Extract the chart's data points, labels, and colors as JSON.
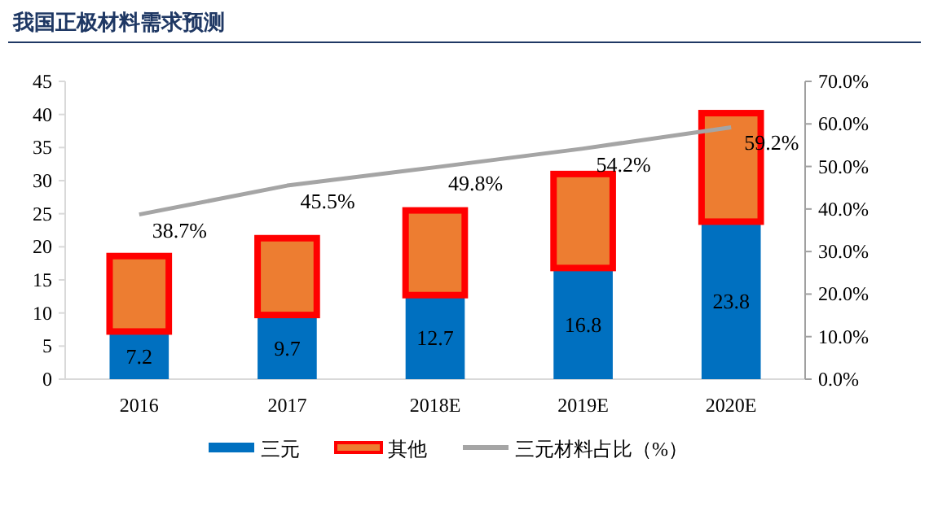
{
  "chart_data": {
    "type": "bar",
    "title": "我国正极材料需求预测",
    "stacked": true,
    "categories": [
      "2016",
      "2017",
      "2018E",
      "2019E",
      "2020E"
    ],
    "series": [
      {
        "name": "三元",
        "color": "#0070c0",
        "values": [
          7.2,
          9.7,
          12.7,
          16.8,
          23.8
        ],
        "value_labels": [
          "7.2",
          "9.7",
          "12.7",
          "16.8",
          "23.8"
        ]
      },
      {
        "name": "其他",
        "color": "#ed7d31",
        "values": [
          11.4,
          11.6,
          12.8,
          14.2,
          16.4
        ]
      },
      {
        "name": "三元材料占比（%）",
        "type": "line",
        "axis": "y2",
        "color": "#a5a5a5",
        "values": [
          38.7,
          45.5,
          49.8,
          54.2,
          59.2
        ],
        "value_labels": [
          "38.7%",
          "45.5%",
          "49.8%",
          "54.2%",
          "59.2%"
        ]
      }
    ],
    "ylim": [
      0,
      45
    ],
    "yticks": [
      0,
      5,
      10,
      15,
      20,
      25,
      30,
      35,
      40,
      45
    ],
    "y2lim": [
      0,
      70
    ],
    "y2ticks": [
      {
        "value": 0,
        "label": "0.0%"
      },
      {
        "value": 10,
        "label": "10.0%"
      },
      {
        "value": 20,
        "label": "20.0%"
      },
      {
        "value": 30,
        "label": "30.0%"
      },
      {
        "value": 40,
        "label": "40.0%"
      },
      {
        "value": 50,
        "label": "50.0%"
      },
      {
        "value": 60,
        "label": "60.0%"
      },
      {
        "value": 70,
        "label": "70.0%"
      }
    ],
    "legend": "bottom",
    "grid": false
  }
}
